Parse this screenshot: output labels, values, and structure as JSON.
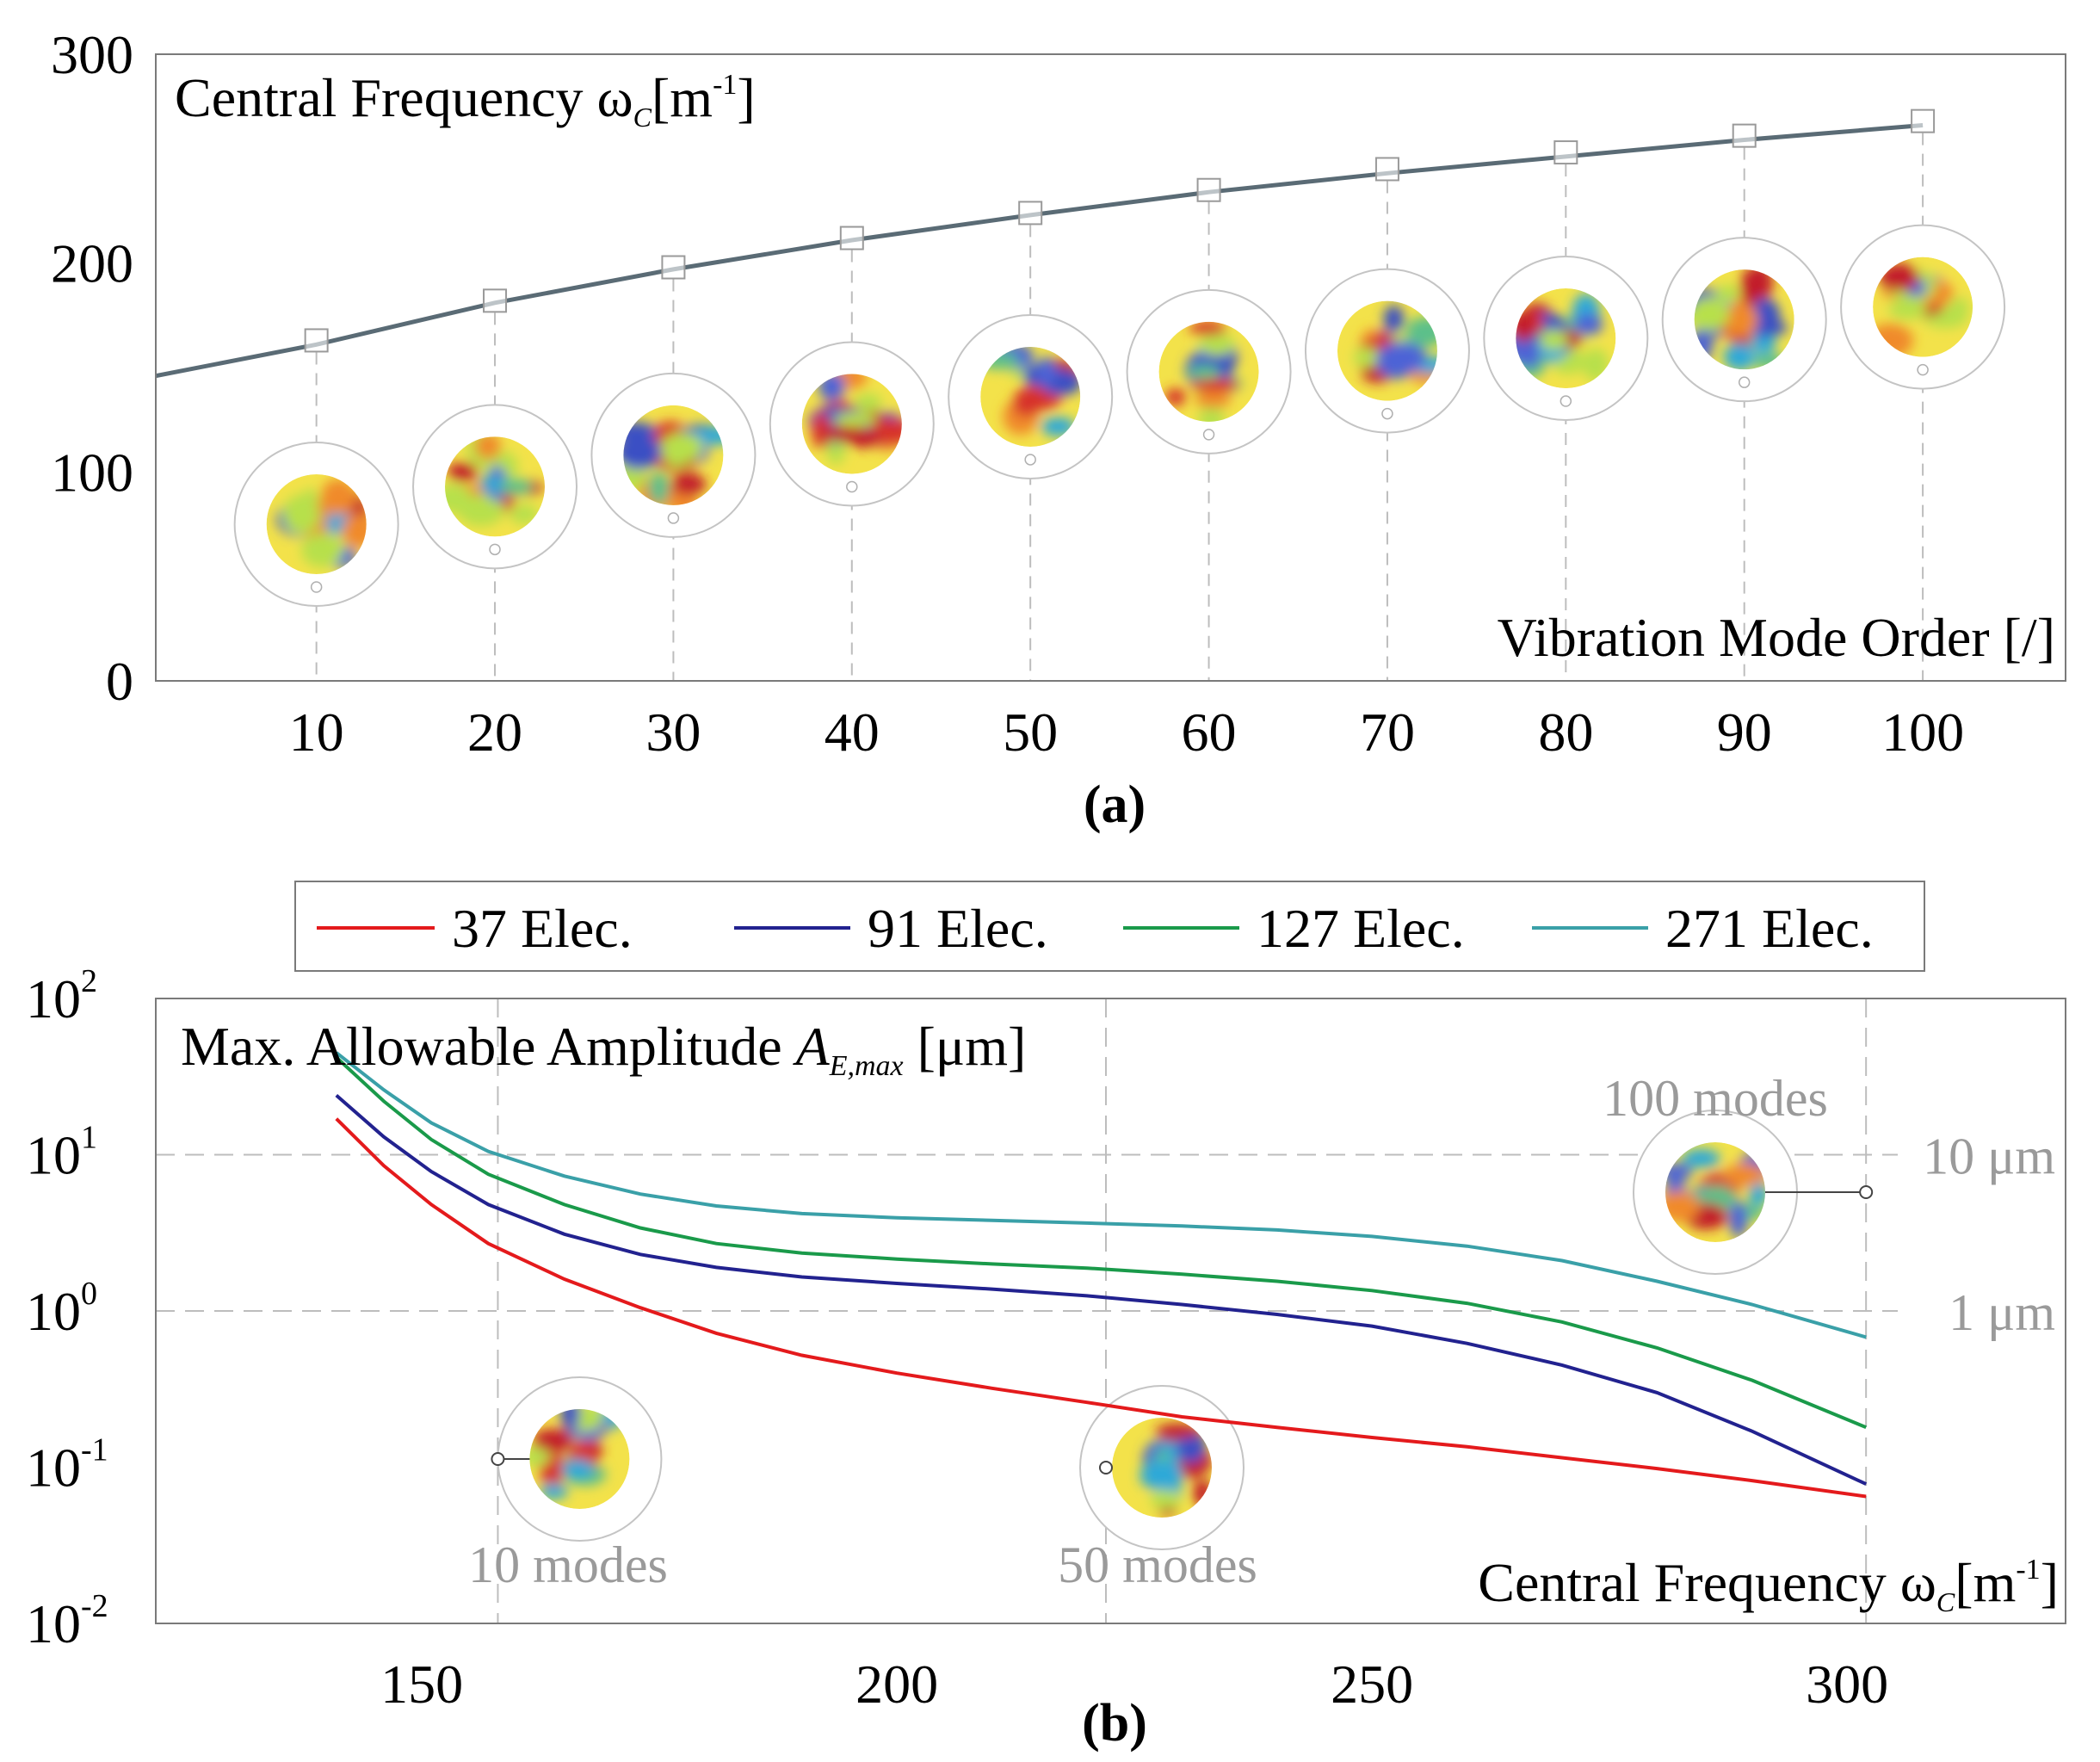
{
  "colors": {
    "axis": "#7a7a7a",
    "curve_a": "#5a6b75",
    "marker": "#9a9a9a",
    "grid": "#bdbdbd",
    "annotation": "#9a9a9a",
    "red": "#e41a1c",
    "blue": "#22228f",
    "green": "#1a9a4a",
    "teal": "#3aa0a8"
  },
  "chart_data": [
    {
      "id": "a",
      "type": "line",
      "panel_label": "(a)",
      "title": "Central Frequency ω",
      "title_subscript": "C",
      "title_unit_open": "[m",
      "title_unit_exp": "-1",
      "title_unit_close": "]",
      "xlabel": "Vibration Mode Order [/]",
      "ylabel": "",
      "xlim": [
        1,
        108
      ],
      "ylim": [
        0,
        300
      ],
      "xticks": [
        10,
        20,
        30,
        40,
        50,
        60,
        70,
        80,
        90,
        100
      ],
      "yticks": [
        0,
        100,
        200,
        300
      ],
      "curve": {
        "x": [
          1,
          10,
          20,
          30,
          40,
          50,
          60,
          70,
          80,
          90,
          100
        ],
        "y": [
          146,
          161,
          181,
          197,
          211,
          223,
          234,
          243,
          251,
          259,
          266
        ]
      },
      "markers": {
        "x": [
          10,
          20,
          30,
          40,
          50,
          60,
          70,
          80,
          90,
          100
        ],
        "y": [
          163,
          182,
          198,
          212,
          224,
          235,
          245,
          253,
          261,
          268
        ]
      },
      "mode_shape_icons": [
        {
          "mode": 10,
          "center_y": 75,
          "seed": 1
        },
        {
          "mode": 20,
          "center_y": 93,
          "seed": 2
        },
        {
          "mode": 30,
          "center_y": 108,
          "seed": 3
        },
        {
          "mode": 40,
          "center_y": 123,
          "seed": 4
        },
        {
          "mode": 50,
          "center_y": 136,
          "seed": 5
        },
        {
          "mode": 60,
          "center_y": 148,
          "seed": 6
        },
        {
          "mode": 70,
          "center_y": 158,
          "seed": 7
        },
        {
          "mode": 80,
          "center_y": 164,
          "seed": 8
        },
        {
          "mode": 90,
          "center_y": 173,
          "seed": 9
        },
        {
          "mode": 100,
          "center_y": 179,
          "seed": 10
        }
      ]
    },
    {
      "id": "b",
      "type": "line",
      "scale_y": "log",
      "panel_label": "(b)",
      "title_prefix": "Max. Allowable Amplitude ",
      "title_symbol": "A",
      "title_subscript": "E,max",
      "title_unit": " [μm]",
      "xlabel": "Central Frequency ω",
      "xlabel_subscript": "C",
      "xlabel_unit_open": "[m",
      "xlabel_unit_exp": "-1",
      "xlabel_unit_close": "]",
      "xlim": [
        122,
        323
      ],
      "ylim_exp": [
        -2,
        2
      ],
      "xticks": [
        150,
        200,
        250,
        300
      ],
      "ytick_base": "10",
      "ytick_exps": [
        "-2",
        "-1",
        "0",
        "1",
        "2"
      ],
      "reference_lines": [
        {
          "value": 10,
          "label": "10 μm"
        },
        {
          "value": 1,
          "label": "1 μm"
        }
      ],
      "mode_markers": [
        {
          "frequency": 158,
          "label": "10 modes",
          "seed": 11
        },
        {
          "frequency": 222,
          "label": "50 modes",
          "seed": 12
        },
        {
          "frequency": 302,
          "label": "100 modes",
          "seed": 13
        }
      ],
      "legend": [
        "37 Elec.",
        "91 Elec.",
        "127 Elec.",
        "271 Elec."
      ],
      "series": [
        {
          "name": "37 Elec.",
          "color": "#e41a1c",
          "x": [
            141,
            146,
            151,
            157,
            165,
            173,
            181,
            190,
            200,
            210,
            220,
            230,
            240,
            250,
            260,
            270,
            280,
            290,
            302
          ],
          "y": [
            17,
            8.5,
            4.8,
            2.7,
            1.6,
            1.05,
            0.72,
            0.52,
            0.4,
            0.32,
            0.26,
            0.21,
            0.18,
            0.155,
            0.135,
            0.115,
            0.098,
            0.082,
            0.065
          ]
        },
        {
          "name": "91 Elec.",
          "color": "#22228f",
          "x": [
            141,
            146,
            151,
            157,
            165,
            173,
            181,
            190,
            200,
            210,
            220,
            230,
            240,
            250,
            260,
            270,
            280,
            290,
            302
          ],
          "y": [
            24,
            13,
            7.8,
            4.8,
            3.1,
            2.3,
            1.9,
            1.65,
            1.5,
            1.38,
            1.25,
            1.1,
            0.95,
            0.8,
            0.62,
            0.45,
            0.3,
            0.17,
            0.078
          ]
        },
        {
          "name": "127 Elec.",
          "color": "#1a9a4a",
          "x": [
            141,
            146,
            151,
            157,
            165,
            173,
            181,
            190,
            200,
            210,
            220,
            230,
            240,
            250,
            260,
            270,
            280,
            290,
            302
          ],
          "y": [
            42,
            22,
            12.5,
            7.5,
            4.8,
            3.4,
            2.7,
            2.35,
            2.15,
            2.0,
            1.88,
            1.72,
            1.55,
            1.35,
            1.12,
            0.85,
            0.58,
            0.36,
            0.18
          ]
        },
        {
          "name": "271 Elec.",
          "color": "#3aa0a8",
          "x": [
            141,
            146,
            151,
            157,
            165,
            173,
            181,
            190,
            200,
            210,
            220,
            230,
            240,
            250,
            260,
            270,
            280,
            290,
            302
          ],
          "y": [
            45,
            26,
            16,
            10.5,
            7.3,
            5.6,
            4.7,
            4.2,
            3.95,
            3.8,
            3.65,
            3.5,
            3.3,
            3.0,
            2.6,
            2.1,
            1.55,
            1.1,
            0.68
          ]
        }
      ]
    }
  ]
}
